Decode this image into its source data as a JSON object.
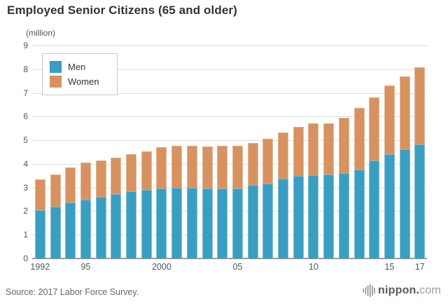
{
  "header": {
    "title": "Employed Senior Citizens (65 and older)"
  },
  "chart_data": {
    "type": "bar",
    "stacked": true,
    "title": "Employed Senior Citizens (65 and older)",
    "unit_label": "(million)",
    "xlabel": "",
    "ylabel": "(million)",
    "ylim": [
      0,
      9
    ],
    "yticks": [
      0,
      1,
      2,
      3,
      4,
      5,
      6,
      7,
      8,
      9
    ],
    "grid": true,
    "legend_position": "top-left",
    "categories": [
      1992,
      1993,
      1994,
      1995,
      1996,
      1997,
      1998,
      1999,
      2000,
      2001,
      2002,
      2003,
      2004,
      2005,
      2006,
      2007,
      2008,
      2009,
      2010,
      2011,
      2012,
      2013,
      2014,
      2015,
      2016,
      2017
    ],
    "xtick_labels": [
      {
        "index": 0,
        "label": "1992"
      },
      {
        "index": 3,
        "label": "95"
      },
      {
        "index": 8,
        "label": "2000"
      },
      {
        "index": 13,
        "label": "05"
      },
      {
        "index": 18,
        "label": "10"
      },
      {
        "index": 23,
        "label": "15"
      },
      {
        "index": 25,
        "label": "17"
      }
    ],
    "series": [
      {
        "name": "Men",
        "color": "#3a9ec2",
        "values": [
          2.05,
          2.2,
          2.38,
          2.5,
          2.62,
          2.72,
          2.83,
          2.9,
          2.97,
          3.0,
          2.98,
          2.96,
          2.95,
          2.96,
          3.1,
          3.17,
          3.38,
          3.5,
          3.53,
          3.54,
          3.6,
          3.75,
          4.15,
          4.42,
          4.61,
          4.83
        ]
      },
      {
        "name": "Women",
        "color": "#d8925f",
        "values": [
          1.31,
          1.36,
          1.47,
          1.56,
          1.52,
          1.55,
          1.57,
          1.63,
          1.73,
          1.77,
          1.78,
          1.78,
          1.81,
          1.82,
          1.8,
          1.9,
          1.94,
          2.06,
          2.17,
          2.17,
          2.36,
          2.62,
          2.67,
          2.9,
          3.09,
          3.24
        ]
      }
    ],
    "totals": [
      3.36,
      3.56,
      3.85,
      4.06,
      4.14,
      4.27,
      4.4,
      4.53,
      4.7,
      4.77,
      4.76,
      4.74,
      4.76,
      4.78,
      4.9,
      5.07,
      5.32,
      5.56,
      5.7,
      5.71,
      5.96,
      6.37,
      6.82,
      7.32,
      7.7,
      8.07
    ]
  },
  "footer": {
    "source": "Source: 2017 Labor Force Survey.",
    "logo": {
      "name": "nippon",
      "dot": ".",
      "tld": "com"
    }
  }
}
